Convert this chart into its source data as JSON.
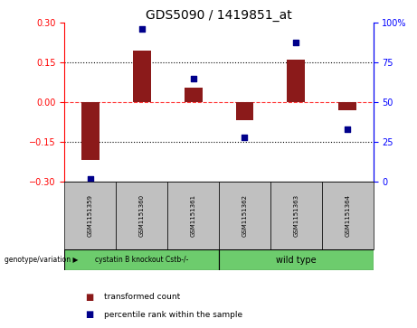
{
  "title": "GDS5090 / 1419851_at",
  "samples": [
    "GSM1151359",
    "GSM1151360",
    "GSM1151361",
    "GSM1151362",
    "GSM1151363",
    "GSM1151364"
  ],
  "transformed_counts": [
    -0.215,
    0.195,
    0.055,
    -0.065,
    0.16,
    -0.03
  ],
  "percentile_ranks": [
    2,
    96,
    65,
    28,
    88,
    33
  ],
  "ylim_left": [
    -0.3,
    0.3
  ],
  "ylim_right": [
    0,
    100
  ],
  "yticks_left": [
    -0.3,
    -0.15,
    0,
    0.15,
    0.3
  ],
  "yticks_right": [
    0,
    25,
    50,
    75,
    100
  ],
  "bar_color": "#8B1A1A",
  "dot_color": "#00008B",
  "bar_width": 0.35,
  "legend_bar_label": "transformed count",
  "legend_dot_label": "percentile rank within the sample",
  "sample_box_color": "#c0c0c0",
  "group1_label": "cystatin B knockout Cstb-/-",
  "group1_color": "#6dcc6d",
  "group2_label": "wild type",
  "group2_color": "#6dcc6d",
  "genotype_label": "genotype/variation",
  "title_fontsize": 10,
  "tick_fontsize": 7,
  "label_fontsize": 6.5,
  "legend_fontsize": 6.5
}
